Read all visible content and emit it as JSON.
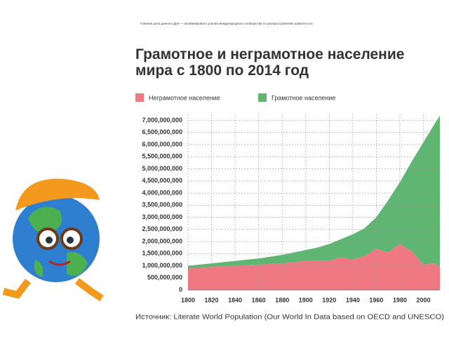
{
  "slide_caption": "Главная цель данного Дня — активизировать усилия международного сообщества по распространению грамотности",
  "chart_data": {
    "type": "stacked-area",
    "title": "Грамотное и неграмотное население мира с 1800 по 2014 год",
    "source": "Источник: Literate World Population (Our World In Data based on OECD and UNESCO)",
    "x": [
      1800,
      1820,
      1840,
      1860,
      1880,
      1900,
      1910,
      1920,
      1930,
      1940,
      1950,
      1960,
      1970,
      1980,
      1990,
      2000,
      2010,
      2014
    ],
    "series": [
      {
        "name": "Неграмотное население",
        "color": "#f07882",
        "values": [
          880000000,
          950000000,
          1000000000,
          1050000000,
          1100000000,
          1200000000,
          1200000000,
          1200000000,
          1350000000,
          1250000000,
          1400000000,
          1700000000,
          1550000000,
          1900000000,
          1600000000,
          1050000000,
          1100000000,
          950000000
        ]
      },
      {
        "name": "Грамотное население",
        "color": "#5fb572",
        "values": [
          120000000,
          150000000,
          200000000,
          250000000,
          350000000,
          450000000,
          550000000,
          700000000,
          750000000,
          1050000000,
          1150000000,
          1300000000,
          2150000000,
          2550000000,
          3700000000,
          5050000000,
          5800000000,
          6250000000
        ]
      }
    ],
    "xlim": [
      1800,
      2014
    ],
    "xticks": [
      1800,
      1820,
      1840,
      1860,
      1880,
      1900,
      1920,
      1940,
      1960,
      1980,
      2000
    ],
    "ylim": [
      0,
      7250000000
    ],
    "yticks": [
      0,
      {
        "value": 500000000,
        "label": "500,000,000"
      },
      {
        "value": 1000000000,
        "label": "1,000,000,000"
      },
      {
        "value": 1500000000,
        "label": "1,500,000,000"
      },
      {
        "value": 2000000000,
        "label": "2,000,000,000"
      },
      {
        "value": 2500000000,
        "label": "2,500,000,000"
      },
      {
        "value": 3000000000,
        "label": "3,000,000,000"
      },
      {
        "value": 3500000000,
        "label": "3,500,000,000"
      },
      {
        "value": 4000000000,
        "label": "4,000,000,000"
      },
      {
        "value": 4500000000,
        "label": "4,500,000,000"
      },
      {
        "value": 5000000000,
        "label": "5,000,000,000"
      },
      {
        "value": 5500000000,
        "label": "5,500,000,000"
      },
      {
        "value": 6000000000,
        "label": "6,000,000,000"
      },
      {
        "value": 6500000000,
        "label": "6,500,000,000"
      },
      {
        "value": 7000000000,
        "label": "7,000,000,000"
      }
    ],
    "grid": true
  }
}
